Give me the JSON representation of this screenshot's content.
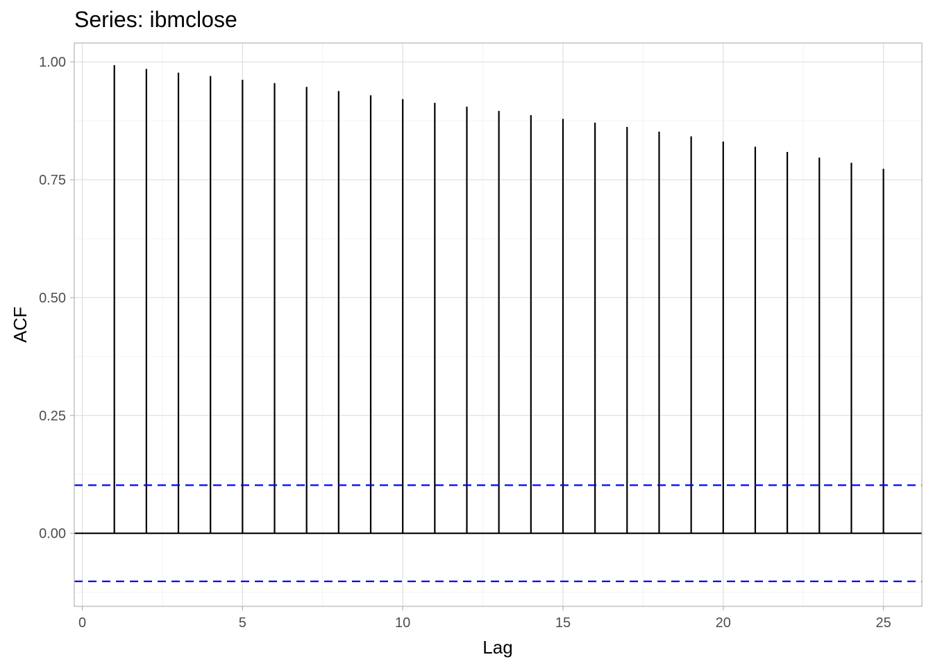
{
  "chart_data": {
    "type": "bar",
    "subtype": "acf-lollipop",
    "title": "Series: ibmclose",
    "xlabel": "Lag",
    "ylabel": "ACF",
    "x": [
      1,
      2,
      3,
      4,
      5,
      6,
      7,
      8,
      9,
      10,
      11,
      12,
      13,
      14,
      15,
      16,
      17,
      18,
      19,
      20,
      21,
      22,
      23,
      24,
      25
    ],
    "values": [
      0.993,
      0.985,
      0.977,
      0.97,
      0.962,
      0.955,
      0.947,
      0.938,
      0.929,
      0.921,
      0.913,
      0.905,
      0.896,
      0.887,
      0.879,
      0.871,
      0.862,
      0.852,
      0.842,
      0.831,
      0.82,
      0.809,
      0.797,
      0.786,
      0.773
    ],
    "confidence_band": [
      -0.102,
      0.102
    ],
    "xlim": [
      -0.25,
      26.2
    ],
    "ylim": [
      -0.155,
      1.04
    ],
    "x_ticks": [
      0,
      5,
      10,
      15,
      20,
      25
    ],
    "x_tick_labels": [
      "0",
      "5",
      "10",
      "15",
      "20",
      "25"
    ],
    "y_ticks": [
      0.0,
      0.25,
      0.5,
      0.75,
      1.0
    ],
    "y_tick_labels": [
      "0.00",
      "0.25",
      "0.50",
      "0.75",
      "1.00"
    ],
    "grid": true,
    "colors": {
      "bars": "#000000",
      "confidence_band": "#0000ff",
      "grid_major": "#dedede",
      "grid_minor": "#efefef",
      "panel_border": "#b3b3b3",
      "tick_text": "#4d4d4d"
    }
  }
}
